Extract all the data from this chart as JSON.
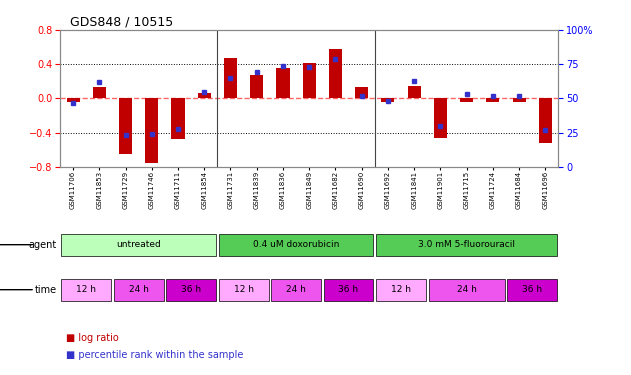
{
  "title": "GDS848 / 10515",
  "samples": [
    "GSM11706",
    "GSM11853",
    "GSM11729",
    "GSM11746",
    "GSM11711",
    "GSM11854",
    "GSM11731",
    "GSM11839",
    "GSM11836",
    "GSM11849",
    "GSM11682",
    "GSM11690",
    "GSM11692",
    "GSM11841",
    "GSM11901",
    "GSM11715",
    "GSM11724",
    "GSM11684",
    "GSM11696"
  ],
  "log_ratio": [
    -0.04,
    0.13,
    -0.65,
    -0.76,
    -0.47,
    0.06,
    0.47,
    0.27,
    0.35,
    0.42,
    0.58,
    0.13,
    -0.04,
    0.15,
    -0.46,
    -0.04,
    -0.04,
    -0.04,
    -0.52
  ],
  "percentile": [
    47,
    62,
    23,
    24,
    28,
    55,
    65,
    69,
    74,
    73,
    79,
    52,
    48,
    63,
    30,
    53,
    52,
    52,
    27
  ],
  "ylim_left": [
    -0.8,
    0.8
  ],
  "ylim_right": [
    0,
    100
  ],
  "yticks_left": [
    -0.8,
    -0.4,
    0.0,
    0.4,
    0.8
  ],
  "yticks_right": [
    0,
    25,
    50,
    75,
    100
  ],
  "hlines": [
    -0.4,
    0.0,
    0.4
  ],
  "bar_color": "#c00000",
  "dot_color": "#3333cc",
  "zero_line_color": "#ff6666",
  "grid_color": "#000000",
  "agent_groups": [
    {
      "label": "untreated",
      "start": 0,
      "end": 5,
      "color": "#bbffbb"
    },
    {
      "label": "0.4 uM doxorubicin",
      "start": 6,
      "end": 11,
      "color": "#55cc55"
    },
    {
      "label": "3.0 mM 5-fluorouracil",
      "start": 12,
      "end": 18,
      "color": "#55cc55"
    }
  ],
  "time_groups": [
    {
      "label": "12 h",
      "start": 0,
      "end": 1,
      "color": "#ffaaff"
    },
    {
      "label": "24 h",
      "start": 2,
      "end": 3,
      "color": "#ee55ee"
    },
    {
      "label": "36 h",
      "start": 4,
      "end": 5,
      "color": "#cc00cc"
    },
    {
      "label": "12 h",
      "start": 6,
      "end": 7,
      "color": "#ffaaff"
    },
    {
      "label": "24 h",
      "start": 8,
      "end": 9,
      "color": "#ee55ee"
    },
    {
      "label": "36 h",
      "start": 10,
      "end": 11,
      "color": "#cc00cc"
    },
    {
      "label": "12 h",
      "start": 12,
      "end": 13,
      "color": "#ffaaff"
    },
    {
      "label": "24 h",
      "start": 14,
      "end": 16,
      "color": "#ee55ee"
    },
    {
      "label": "36 h",
      "start": 17,
      "end": 18,
      "color": "#cc00cc"
    }
  ],
  "background_color": "#ffffff",
  "legend_items": [
    {
      "label": "log ratio",
      "color": "#c00000"
    },
    {
      "label": "percentile rank within the sample",
      "color": "#3333cc"
    }
  ]
}
